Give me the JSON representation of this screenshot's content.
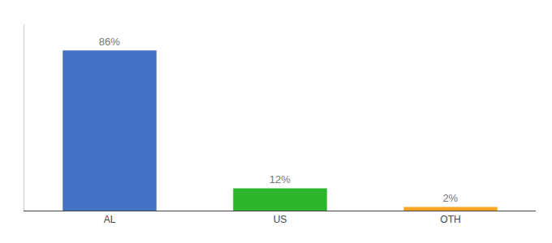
{
  "chart_data": {
    "type": "bar",
    "categories": [
      "AL",
      "US",
      "OTH"
    ],
    "values": [
      86,
      12,
      2
    ],
    "value_labels": [
      "86%",
      "12%",
      "2%"
    ],
    "colors": [
      "#4472c4",
      "#2db52d",
      "#f5a623"
    ],
    "ylim": [
      0,
      100
    ],
    "grid": false,
    "tick_labels": "x"
  }
}
